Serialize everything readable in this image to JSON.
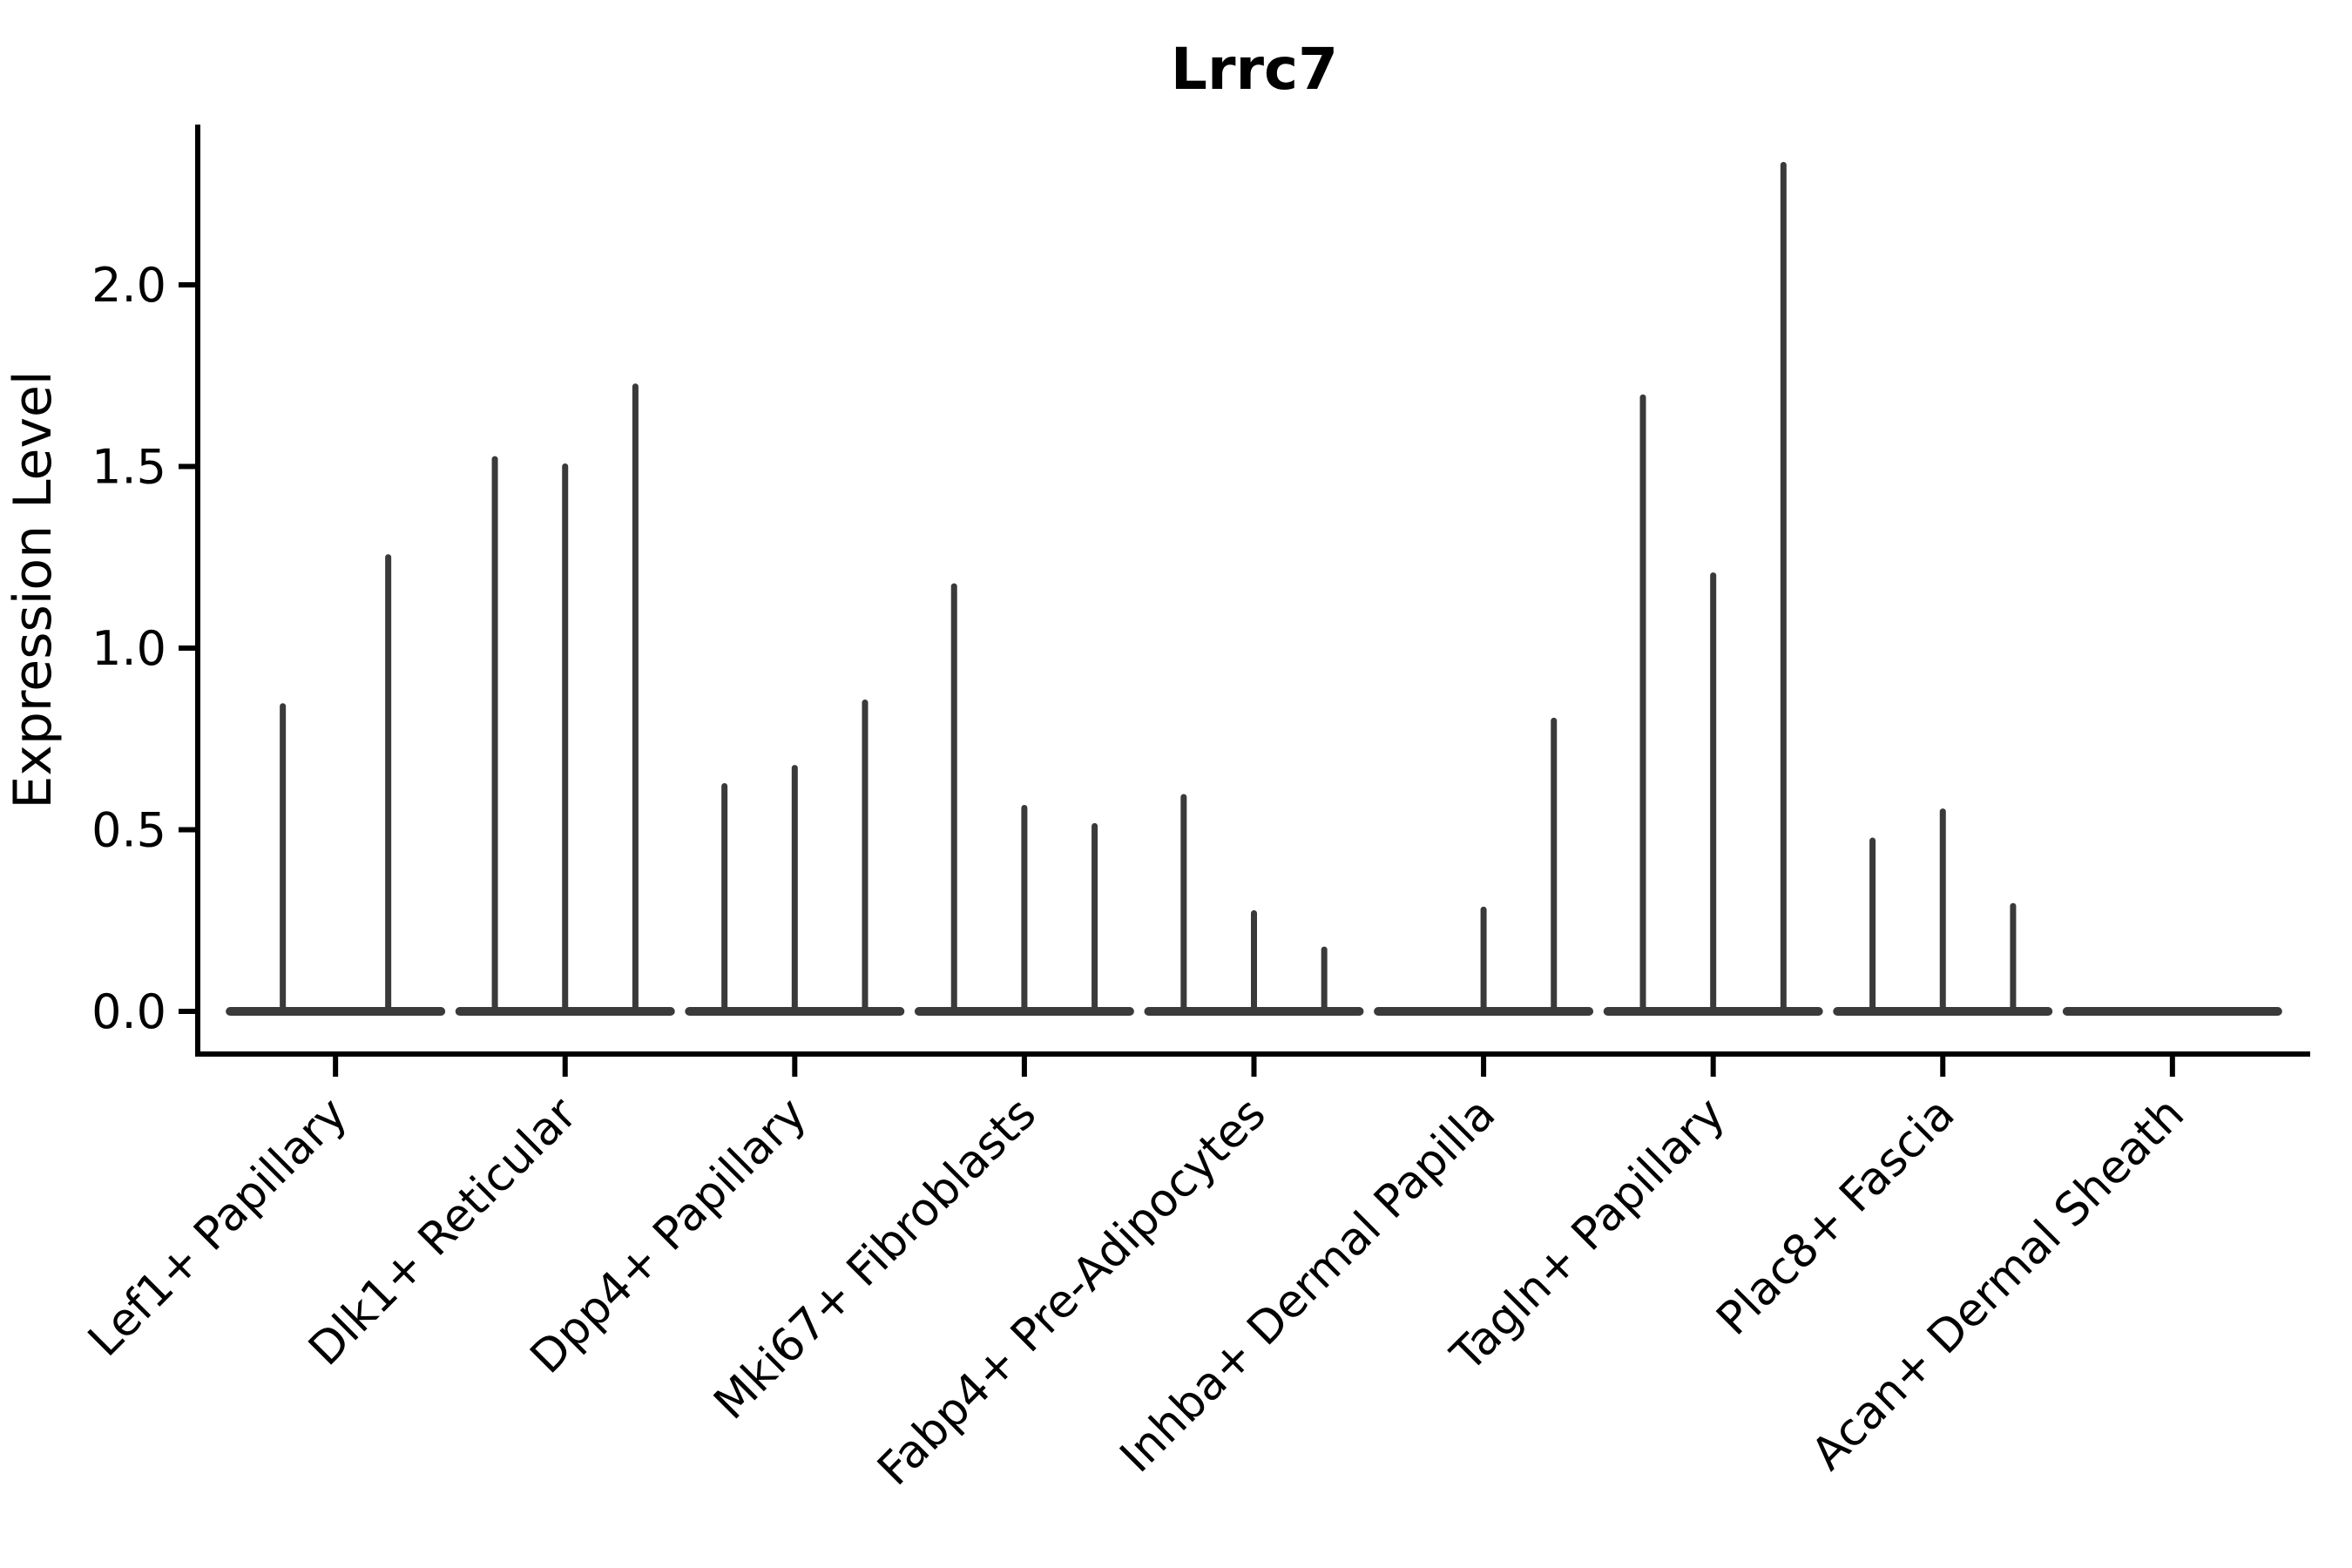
{
  "figure": {
    "title": "Lrrc7"
  },
  "chart_data": {
    "type": "violin",
    "title": "Lrrc7",
    "ylabel": "Expression Level",
    "xlabel": "",
    "ylim": [
      -0.12,
      2.44
    ],
    "grid": false,
    "legend": "none",
    "background_color": "#ffffff",
    "axis_color": "#000000",
    "violin_color": "#3a3a3a",
    "ytick_labels": [
      "0.0",
      "0.5",
      "1.0",
      "1.5",
      "2.0"
    ],
    "ytick_values": [
      0,
      0.5,
      1,
      1.5,
      2
    ],
    "categories": [
      "Lef1+ Papillary",
      "Dlk1+ Reticular",
      "Dpp4+ Papillary",
      "Mki67+ Fibroblasts",
      "Fabp4+ Pre-Adipocytes",
      "Inhba+ Dermal Papilla",
      "Tagln+ Papillary",
      "Plac8+ Fascia",
      "Acan+ Dermal Sheath"
    ],
    "groups": [
      {
        "category": "Lef1+ Papillary",
        "violin_peak_heights": [
          0.84,
          1.25
        ]
      },
      {
        "category": "Dlk1+ Reticular",
        "violin_peak_heights": [
          1.52,
          1.5,
          1.72
        ]
      },
      {
        "category": "Dpp4+ Papillary",
        "violin_peak_heights": [
          0.62,
          0.67,
          0.85
        ]
      },
      {
        "category": "Mki67+ Fibroblasts",
        "violin_peak_heights": [
          1.17,
          0.56,
          0.51
        ]
      },
      {
        "category": "Fabp4+ Pre-Adipocytes",
        "violin_peak_heights": [
          0.59,
          0.27,
          0.17
        ]
      },
      {
        "category": "Inhba+ Dermal Papilla",
        "violin_peak_heights": [
          0.0,
          0.28,
          0.8
        ]
      },
      {
        "category": "Tagln+ Papillary",
        "violin_peak_heights": [
          1.69,
          1.2,
          2.33
        ]
      },
      {
        "category": "Plac8+ Fascia",
        "violin_peak_heights": [
          0.47,
          0.55,
          0.29
        ]
      },
      {
        "category": "Acan+ Dermal Sheath",
        "violin_peak_heights": [
          0.0,
          0.0,
          0.0
        ]
      }
    ]
  }
}
